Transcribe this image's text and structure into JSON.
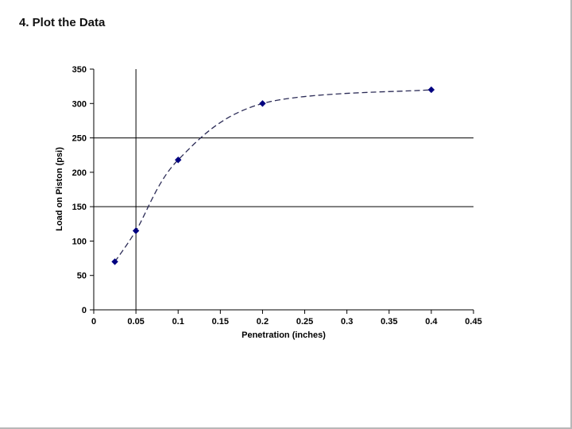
{
  "slide": {
    "title": "4. Plot the Data"
  },
  "chart_data": {
    "type": "scatter",
    "title": "",
    "xlabel": "Penetration (inches)",
    "ylabel": "Load on Piston (psi)",
    "x": [
      0.025,
      0.05,
      0.1,
      0.2,
      0.4
    ],
    "y": [
      70,
      115,
      218,
      300,
      320
    ],
    "xlim": [
      0,
      0.45
    ],
    "ylim": [
      0,
      350
    ],
    "x_ticks": [
      0,
      0.05,
      0.1,
      0.15,
      0.2,
      0.25,
      0.3,
      0.35,
      0.4,
      0.45
    ],
    "x_tick_labels": [
      "0",
      "0.05",
      "0.1",
      "0.15",
      "0.2",
      "0.25",
      "0.3",
      "0.35",
      "0.4",
      "0.45"
    ],
    "y_ticks": [
      0,
      50,
      100,
      150,
      200,
      250,
      300,
      350
    ],
    "y_tick_labels": [
      "0",
      "50",
      "100",
      "150",
      "200",
      "250",
      "300",
      "350"
    ],
    "reference_lines": {
      "vertical_x": [
        0.05
      ],
      "horizontal_y": [
        150,
        250
      ]
    },
    "line_style": "dashed",
    "marker_shape": "diamond",
    "grid": "off",
    "legend": "none",
    "colors": {
      "series_line": "#2b2b56",
      "marker": "#000080",
      "axis": "#000000",
      "reference": "#000000"
    }
  }
}
